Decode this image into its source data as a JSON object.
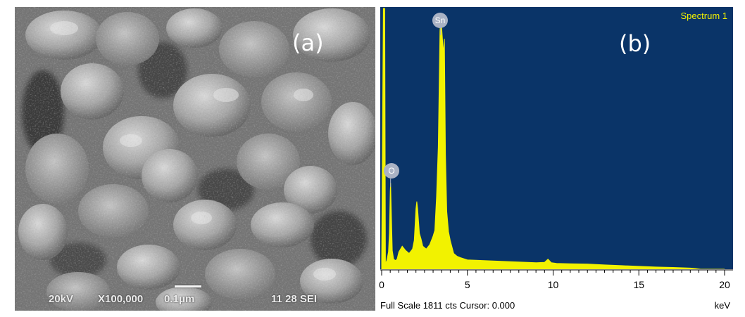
{
  "panel_a": {
    "label": "(a)",
    "voltage": "20kV",
    "magnification": "X100,000",
    "scale": "0.1μm",
    "code": "11 28 SEI"
  },
  "panel_b": {
    "label": "(b)",
    "spectrum_title": "Spectrum 1",
    "peak_labels": {
      "sn": "Sn",
      "o": "O"
    },
    "footer": "Full Scale 1811 cts Cursor: 0.000",
    "unit": "keV",
    "colors": {
      "background": "#0a3468",
      "trace": "#f2f200"
    }
  },
  "chart_data": {
    "type": "area",
    "title": "Spectrum 1",
    "xlabel": "keV",
    "ylabel": "",
    "xlim": [
      0,
      20
    ],
    "ylim": [
      0,
      1811
    ],
    "x_ticks": [
      "0",
      "5",
      "10",
      "15",
      "20"
    ],
    "grid": false,
    "annotations": [
      {
        "label": "O",
        "x": 0.52
      },
      {
        "label": "Sn",
        "x": 3.44
      }
    ],
    "series": [
      {
        "x": [
          0.0,
          0.1,
          0.18,
          0.22,
          0.3,
          0.4,
          0.45,
          0.5,
          0.52,
          0.56,
          0.62,
          0.7,
          0.8,
          0.9,
          1.0,
          1.2,
          1.4,
          1.6,
          1.8,
          1.9,
          2.0,
          2.05,
          2.1,
          2.2,
          2.3,
          2.4,
          2.6,
          2.8,
          3.0,
          3.1,
          3.2,
          3.3,
          3.4,
          3.44,
          3.5,
          3.6,
          3.66,
          3.72,
          3.8,
          3.9,
          4.0,
          4.2,
          4.4,
          4.6,
          5.0,
          6.0,
          7.0,
          8.0,
          9.0,
          9.5,
          9.7,
          9.9,
          10.2,
          11.0,
          12.0,
          13.0,
          14.0,
          15.0,
          16.0,
          17.0,
          18.0,
          18.3,
          18.6,
          20.0
        ],
        "y": [
          60,
          1811,
          1811,
          40,
          60,
          120,
          250,
          540,
          600,
          420,
          130,
          70,
          60,
          70,
          120,
          160,
          130,
          110,
          140,
          200,
          420,
          470,
          420,
          250,
          210,
          160,
          140,
          170,
          230,
          270,
          500,
          850,
          1650,
          1750,
          1680,
          1500,
          1600,
          800,
          400,
          260,
          200,
          110,
          90,
          80,
          65,
          60,
          55,
          50,
          45,
          48,
          70,
          45,
          40,
          38,
          36,
          30,
          25,
          20,
          15,
          12,
          8,
          5,
          0,
          0
        ]
      }
    ]
  }
}
